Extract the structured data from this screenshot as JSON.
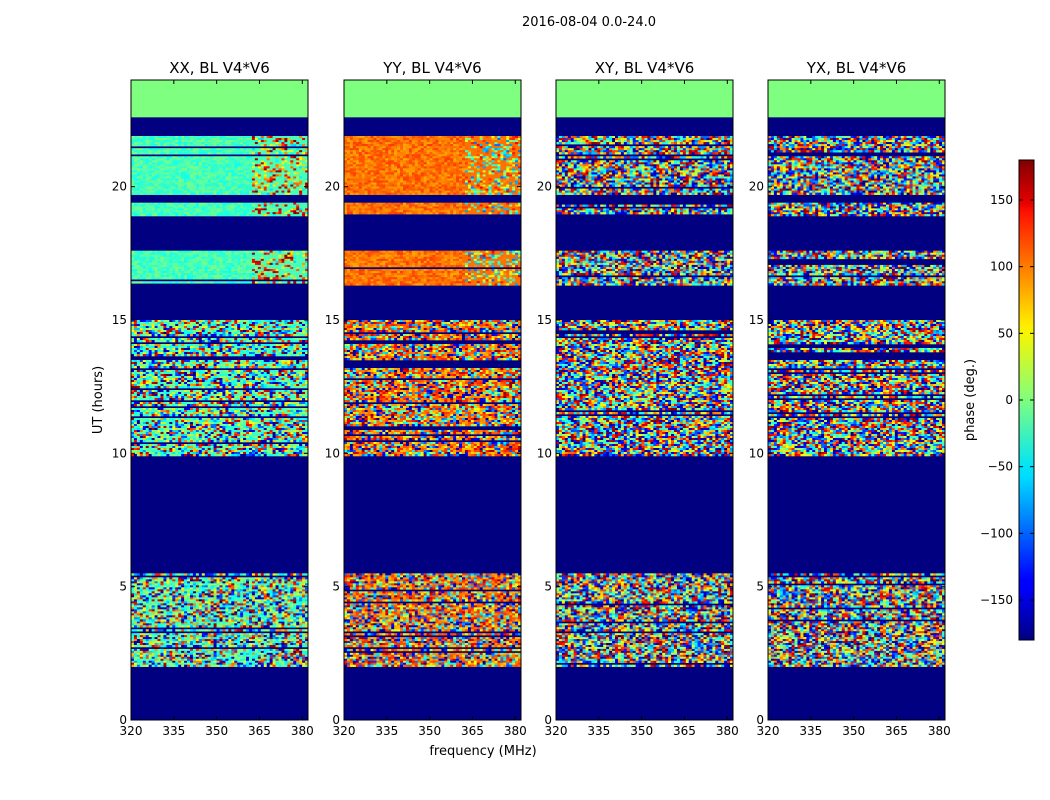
{
  "figure": {
    "suptitle": "2016-08-04 0.0-24.0",
    "xlabel": "frequency (MHz)",
    "ylabel": "UT (hours)"
  },
  "chart_data": {
    "type": "heatmap",
    "x_range_mhz": [
      320,
      382
    ],
    "x_ticks": [
      320,
      335,
      350,
      365,
      380
    ],
    "x_tick_labels": [
      "320",
      "335",
      "350",
      "365",
      "380"
    ],
    "y_range_hours": [
      0,
      24
    ],
    "y_ticks": [
      0,
      5,
      10,
      15,
      20
    ],
    "y_tick_labels": [
      "0",
      "5",
      "10",
      "15",
      "20"
    ],
    "panels": [
      {
        "title": "XX, BL V4*V6",
        "pol": "XX",
        "show_ylabel": true,
        "show_xlabel": false,
        "base_phase": -20,
        "high_end_phase": 60
      },
      {
        "title": "YY, BL V4*V6",
        "pol": "YY",
        "show_ylabel": false,
        "show_xlabel": true,
        "base_phase": 95,
        "high_end_phase": 20
      },
      {
        "title": "XY, BL V4*V6",
        "pol": "XY",
        "show_ylabel": false,
        "show_xlabel": false,
        "base_phase": null,
        "high_end_phase": null
      },
      {
        "title": "YX, BL V4*V6",
        "pol": "YX",
        "show_ylabel": false,
        "show_xlabel": false,
        "base_phase": null,
        "high_end_phase": null
      }
    ],
    "flagged_intervals_hours": [
      [
        0,
        2.0
      ],
      [
        5.5,
        9.9
      ],
      [
        15.0,
        16.3
      ],
      [
        18.6,
        18.9
      ],
      [
        22.6,
        24.0
      ]
    ],
    "data_intervals_hours": [
      [
        2.0,
        3.7
      ],
      [
        3.7,
        5.5
      ],
      [
        9.9,
        15.0
      ],
      [
        16.3,
        17.6
      ],
      [
        18.9,
        19.4
      ],
      [
        19.7,
        21.9
      ]
    ],
    "colorbar": {
      "label": "phase (deg.)",
      "range": [
        -180,
        180
      ],
      "ticks": [
        -150,
        -100,
        -50,
        0,
        50,
        100,
        150
      ],
      "tick_labels": [
        "−150",
        "−100",
        "−50",
        "0",
        "50",
        "100",
        "150"
      ],
      "colormap": "jet",
      "flagged_color": "#000080",
      "no_data_color": "#7fff7f"
    }
  }
}
